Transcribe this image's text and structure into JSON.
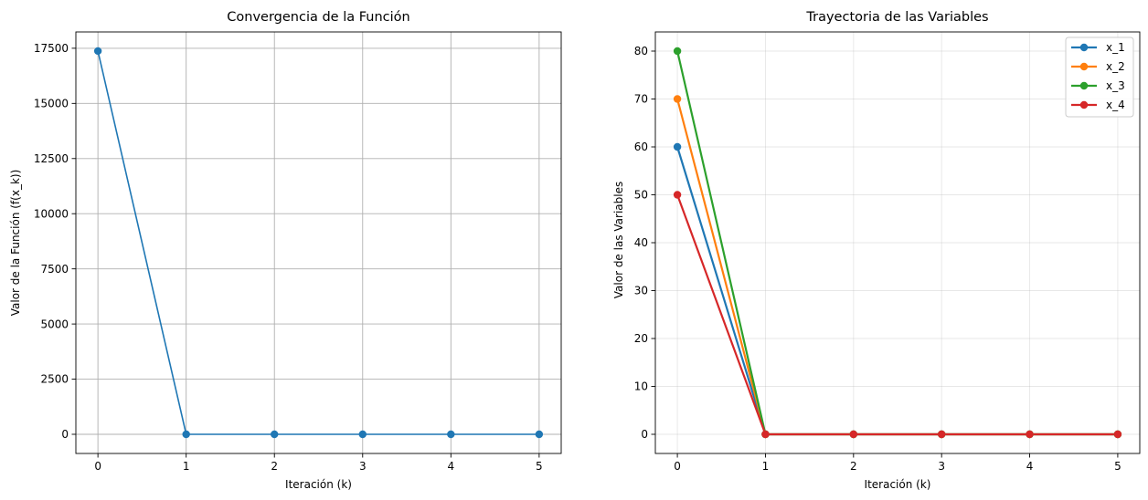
{
  "chart_data": [
    {
      "type": "line",
      "title": "Convergencia de la Función",
      "xlabel": "Iteración (k)",
      "ylabel": "Valor de la Función (f(x_k))",
      "x": [
        0,
        1,
        2,
        3,
        4,
        5
      ],
      "xticks": [
        "0",
        "1",
        "2",
        "3",
        "4",
        "5"
      ],
      "yticks": [
        "0",
        "2500",
        "5000",
        "7500",
        "10000",
        "12500",
        "15000",
        "17500"
      ],
      "xlim": [
        -0.25,
        5.25
      ],
      "ylim": [
        -869,
        18240
      ],
      "grid": true,
      "series": [
        {
          "name": "",
          "color": "#1f77b4",
          "values": [
            17375,
            0,
            0,
            0,
            0,
            0
          ]
        }
      ]
    },
    {
      "type": "line",
      "title": "Trayectoria de las Variables",
      "xlabel": "Iteración (k)",
      "ylabel": "Valor de las Variables",
      "x": [
        0,
        1,
        2,
        3,
        4,
        5
      ],
      "xticks": [
        "0",
        "1",
        "2",
        "3",
        "4",
        "5"
      ],
      "yticks": [
        "0",
        "10",
        "20",
        "30",
        "40",
        "50",
        "60",
        "70",
        "80"
      ],
      "xlim": [
        -0.25,
        5.25
      ],
      "ylim": [
        -4,
        84
      ],
      "grid": true,
      "legend": "top-right",
      "series": [
        {
          "name": "x_1",
          "color": "#1f77b4",
          "values": [
            60,
            0,
            0,
            0,
            0,
            0
          ]
        },
        {
          "name": "x_2",
          "color": "#ff7f0e",
          "values": [
            70,
            0,
            0,
            0,
            0,
            0
          ]
        },
        {
          "name": "x_3",
          "color": "#2ca02c",
          "values": [
            80,
            0,
            0,
            0,
            0,
            0
          ]
        },
        {
          "name": "x_4",
          "color": "#d62728",
          "values": [
            50,
            0,
            0,
            0,
            0,
            0
          ]
        }
      ]
    }
  ]
}
